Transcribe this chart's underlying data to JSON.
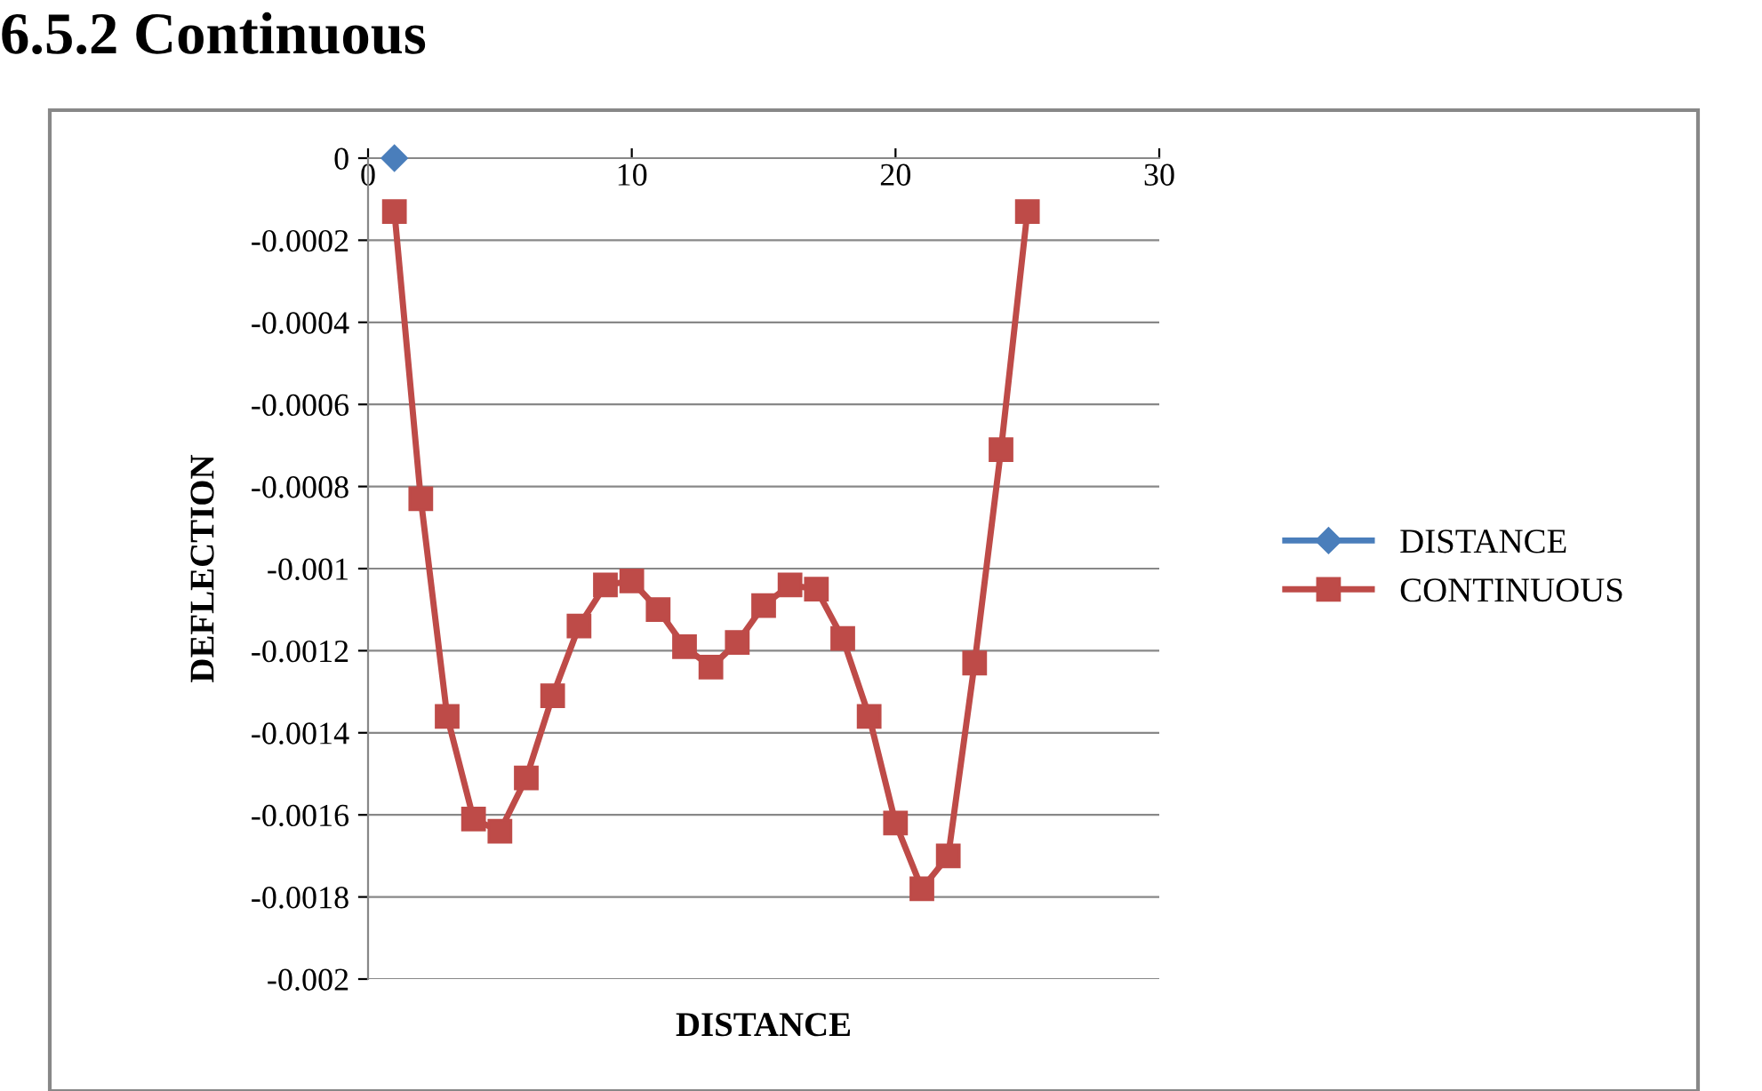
{
  "chart_data": {
    "type": "line",
    "title": "6.5.2 Continuous",
    "xlabel": "DISTANCE",
    "ylabel": "DEFLECTION",
    "xlim": [
      0,
      30
    ],
    "xticks": [
      0,
      10,
      20,
      30
    ],
    "ylim": [
      -0.002,
      0
    ],
    "yticks": [
      0,
      -0.0002,
      -0.0004,
      -0.0006,
      -0.0008,
      -0.001,
      -0.0012,
      -0.0014,
      -0.0016,
      -0.0018,
      -0.002
    ],
    "grid": "y",
    "legend": "right",
    "line_style": "solid",
    "series": [
      {
        "name": "DISTANCE",
        "color": "#4a7ebb",
        "marker": "diamond",
        "x": [
          1
        ],
        "values": [
          0
        ]
      },
      {
        "name": "CONTINUOUS",
        "color": "#be4b48",
        "marker": "square",
        "x": [
          1,
          2,
          3,
          4,
          5,
          6,
          7,
          8,
          9,
          10,
          11,
          12,
          13,
          14,
          15,
          16,
          17,
          18,
          19,
          20,
          21,
          22,
          23,
          24,
          25
        ],
        "values": [
          -0.00013,
          -0.00083,
          -0.00136,
          -0.00161,
          -0.00164,
          -0.00151,
          -0.00131,
          -0.00114,
          -0.00104,
          -0.00103,
          -0.0011,
          -0.00119,
          -0.00124,
          -0.00118,
          -0.00109,
          -0.00104,
          -0.00105,
          -0.00117,
          -0.00136,
          -0.00162,
          -0.00178,
          -0.0017,
          -0.00123,
          -0.00071,
          -0.00013
        ]
      }
    ]
  }
}
